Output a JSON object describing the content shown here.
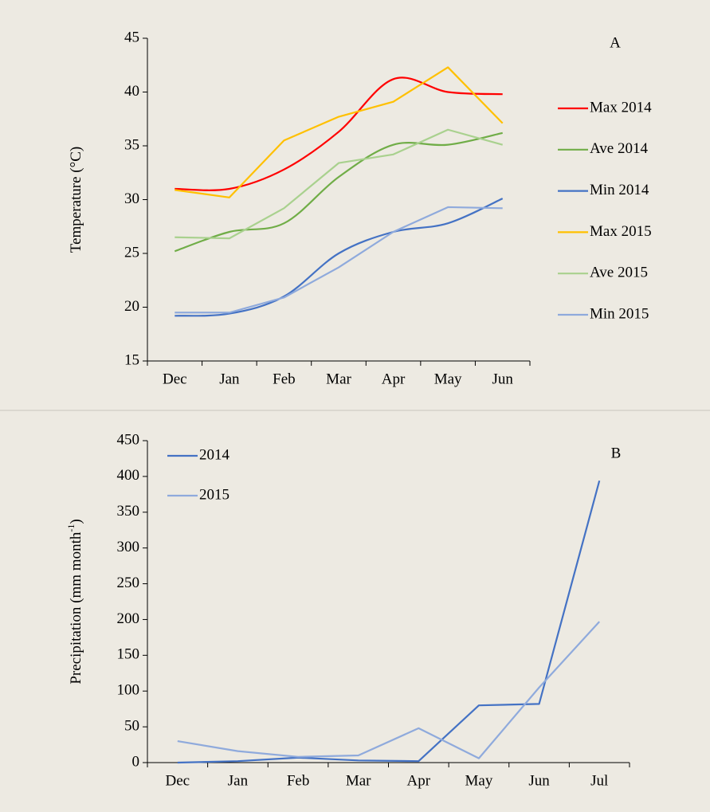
{
  "chart_data": [
    {
      "type": "line",
      "panel_label": "A",
      "y_label": [
        "Temperature (°C)"
      ],
      "categories": [
        "Dec",
        "Jan",
        "Feb",
        "Mar",
        "Apr",
        "May",
        "Jun"
      ],
      "ylim": [
        15,
        45
      ],
      "yticks": [
        15,
        20,
        25,
        30,
        35,
        40,
        45
      ],
      "legend": "right",
      "series": [
        {
          "name": "Max 2014",
          "color": "#ff0000",
          "smooth": true,
          "values": [
            31.0,
            31.0,
            32.8,
            36.3,
            41.2,
            40.0,
            39.8
          ]
        },
        {
          "name": "Ave 2014",
          "color": "#70ad47",
          "smooth": true,
          "values": [
            25.2,
            27.0,
            27.8,
            32.1,
            35.1,
            35.1,
            36.2
          ]
        },
        {
          "name": "Min 2014",
          "color": "#4472c4",
          "smooth": true,
          "values": [
            19.2,
            19.4,
            21.0,
            25.0,
            27.0,
            27.8,
            30.1
          ]
        },
        {
          "name": "Max 2015",
          "color": "#ffc000",
          "smooth": false,
          "values": [
            30.9,
            30.2,
            35.5,
            37.7,
            39.1,
            42.3,
            37.1
          ]
        },
        {
          "name": "Ave 2015",
          "color": "#a9d18e",
          "smooth": false,
          "values": [
            26.5,
            26.4,
            29.2,
            33.4,
            34.2,
            36.5,
            35.1
          ]
        },
        {
          "name": "Min 2015",
          "color": "#8faadc",
          "smooth": false,
          "values": [
            19.5,
            19.5,
            20.9,
            23.7,
            27.0,
            29.3,
            29.2
          ]
        }
      ]
    },
    {
      "type": "line",
      "panel_label": "B",
      "y_label": [
        "Precipitation (mm month",
        "-1",
        ")"
      ],
      "categories": [
        "Dec",
        "Jan",
        "Feb",
        "Mar",
        "Apr",
        "May",
        "Jun",
        "Jul"
      ],
      "ylim": [
        0,
        450
      ],
      "yticks": [
        0,
        50,
        100,
        150,
        200,
        250,
        300,
        350,
        400,
        450
      ],
      "legend": "upper left",
      "series": [
        {
          "name": "2014",
          "color": "#4472c4",
          "smooth": false,
          "values": [
            0,
            2,
            7,
            3,
            2,
            80,
            82,
            394
          ]
        },
        {
          "name": "2015",
          "color": "#8faadc",
          "smooth": false,
          "values": [
            30,
            16,
            8,
            10,
            48,
            6,
            105,
            197
          ]
        }
      ]
    }
  ]
}
